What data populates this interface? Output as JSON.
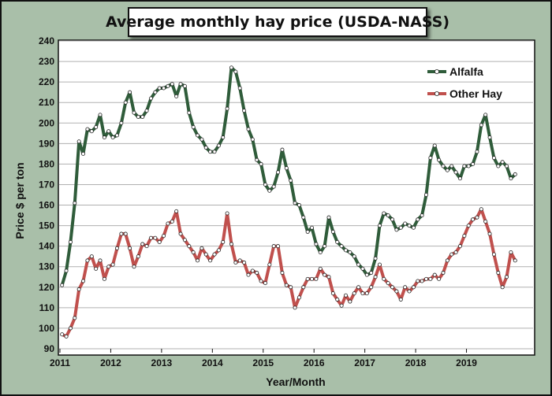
{
  "chart_data": {
    "type": "line",
    "title": "Average monthly hay price (USDA-NASS)",
    "xlabel": "Year/Month",
    "ylabel": "Price $ per ton",
    "ylim": [
      90,
      240
    ],
    "y_ticks": [
      90,
      100,
      110,
      120,
      130,
      140,
      150,
      160,
      170,
      180,
      190,
      200,
      210,
      220,
      230,
      240
    ],
    "x_ticks": [
      "2011",
      "2012",
      "2013",
      "2014",
      "2015",
      "2016",
      "2017",
      "2018",
      "2019"
    ],
    "x_start": "2011-01",
    "legend": "top-right",
    "grid": true,
    "series": [
      {
        "name": "Alfalfa",
        "color": "#2f5c3a",
        "values": [
          121,
          128,
          142,
          161,
          191,
          185,
          197,
          196,
          198,
          204,
          193,
          196,
          193,
          194,
          200,
          210,
          215,
          205,
          203,
          203,
          206,
          212,
          215,
          217,
          217,
          218,
          219,
          213,
          219,
          218,
          205,
          198,
          194,
          192,
          188,
          186,
          186,
          189,
          193,
          207,
          227,
          225,
          217,
          206,
          197,
          192,
          182,
          180,
          170,
          167,
          169,
          176,
          187,
          178,
          172,
          161,
          160,
          154,
          147,
          149,
          141,
          137,
          140,
          154,
          147,
          142,
          140,
          138,
          137,
          135,
          131,
          129,
          126,
          127,
          134,
          150,
          156,
          155,
          153,
          148,
          149,
          151,
          150,
          149,
          153,
          155,
          165,
          183,
          189,
          182,
          179,
          177,
          179,
          176,
          173,
          179,
          179,
          180,
          186,
          199,
          204,
          193,
          183,
          179,
          181,
          179,
          173,
          175
        ]
      },
      {
        "name": "Other Hay",
        "color": "#c0504d",
        "values": [
          97,
          96,
          100,
          105,
          119,
          123,
          133,
          135,
          129,
          133,
          124,
          130,
          131,
          139,
          146,
          146,
          139,
          130,
          135,
          141,
          140,
          144,
          144,
          142,
          145,
          151,
          152,
          157,
          146,
          143,
          140,
          137,
          133,
          139,
          136,
          133,
          136,
          138,
          142,
          156,
          141,
          132,
          133,
          132,
          126,
          128,
          127,
          123,
          122,
          131,
          140,
          140,
          127,
          121,
          120,
          110,
          115,
          120,
          124,
          124,
          124,
          129,
          126,
          125,
          117,
          114,
          111,
          116,
          113,
          117,
          120,
          117,
          117,
          120,
          125,
          131,
          124,
          122,
          120,
          118,
          114,
          120,
          118,
          120,
          123,
          123,
          124,
          124,
          126,
          124,
          127,
          133,
          136,
          137,
          140,
          145,
          150,
          153,
          154,
          158,
          152,
          146,
          136,
          127,
          120,
          125,
          137,
          133
        ]
      }
    ]
  }
}
